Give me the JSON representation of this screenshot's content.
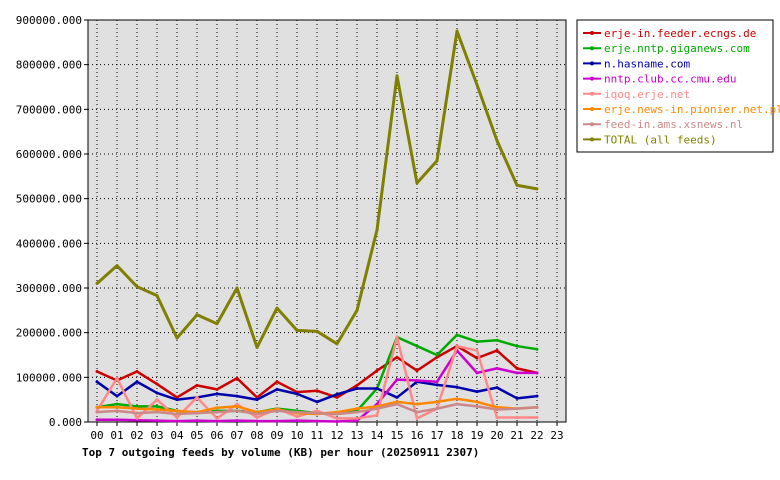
{
  "chart_data": {
    "type": "line",
    "title": "Top 7 outgoing feeds by volume (KB) per hour (20250911 2307)",
    "xlabel": "",
    "ylabel": "",
    "ylim": [
      0,
      900000
    ],
    "y_ticks": [
      "0.000",
      "100000.000",
      "200000.000",
      "300000.000",
      "400000.000",
      "500000.000",
      "600000.000",
      "700000.000",
      "800000.000",
      "900000.000"
    ],
    "categories": [
      "00",
      "01",
      "02",
      "03",
      "04",
      "05",
      "06",
      "07",
      "08",
      "09",
      "10",
      "11",
      "12",
      "13",
      "14",
      "15",
      "16",
      "17",
      "18",
      "19",
      "20",
      "21",
      "22",
      "23"
    ],
    "grid": true,
    "legend_position": "right",
    "series": [
      {
        "name": "erje-in.feeder.ecngs.de",
        "color": "#cc0000",
        "values": [
          113000,
          93000,
          113000,
          85000,
          55000,
          82000,
          73000,
          98000,
          55000,
          90000,
          67000,
          70000,
          55000,
          82000,
          115000,
          145000,
          115000,
          145000,
          170000,
          143000,
          160000,
          120000,
          110000,
          null
        ]
      },
      {
        "name": "erje.nntp.giganews.com",
        "color": "#00aa00",
        "values": [
          33000,
          40000,
          35000,
          35000,
          25000,
          20000,
          25000,
          25000,
          22000,
          30000,
          25000,
          20000,
          18000,
          25000,
          75000,
          190000,
          170000,
          150000,
          195000,
          180000,
          183000,
          170000,
          163000,
          null
        ]
      },
      {
        "name": "n.hasname.com",
        "color": "#0000aa",
        "values": [
          90000,
          58000,
          90000,
          65000,
          50000,
          55000,
          63000,
          58000,
          50000,
          73000,
          63000,
          45000,
          62000,
          75000,
          75000,
          55000,
          90000,
          83000,
          78000,
          68000,
          77000,
          53000,
          58000,
          null
        ]
      },
      {
        "name": "nntp.club.cc.cmu.edu",
        "color": "#cc00cc",
        "values": [
          5000,
          5000,
          4000,
          3000,
          2000,
          3000,
          2000,
          3000,
          2000,
          2000,
          3000,
          2000,
          1000,
          3000,
          40000,
          95000,
          93000,
          90000,
          160000,
          110000,
          120000,
          110000,
          110000,
          null
        ]
      },
      {
        "name": "iqoq.erje.net",
        "color": "#ff8888",
        "values": [
          25000,
          98000,
          8000,
          50000,
          10000,
          55000,
          8000,
          40000,
          10000,
          30000,
          12000,
          25000,
          8000,
          8000,
          15000,
          190000,
          8000,
          30000,
          170000,
          160000,
          10000,
          10000,
          10000,
          null
        ]
      },
      {
        "name": "erje.news-in.pionier.net.pl",
        "color": "#ff8800",
        "values": [
          33000,
          33000,
          30000,
          28000,
          25000,
          22000,
          32000,
          35000,
          22000,
          28000,
          20000,
          18000,
          22000,
          30000,
          35000,
          45000,
          40000,
          45000,
          52000,
          45000,
          33000,
          30000,
          33000,
          null
        ]
      },
      {
        "name": "feed-in.ams.xsnews.nl",
        "color": "#cc8888",
        "values": [
          22000,
          25000,
          20000,
          22000,
          18000,
          20000,
          22000,
          25000,
          18000,
          25000,
          22000,
          20000,
          18000,
          22000,
          30000,
          40000,
          22000,
          30000,
          40000,
          35000,
          28000,
          30000,
          33000,
          null
        ]
      },
      {
        "name": "TOTAL (all feeds)",
        "color": "#808000",
        "values": [
          310000,
          350000,
          303000,
          283000,
          188000,
          240000,
          220000,
          300000,
          167000,
          255000,
          205000,
          203000,
          175000,
          250000,
          430000,
          775000,
          535000,
          585000,
          875000,
          755000,
          630000,
          530000,
          522000,
          null
        ]
      }
    ]
  }
}
